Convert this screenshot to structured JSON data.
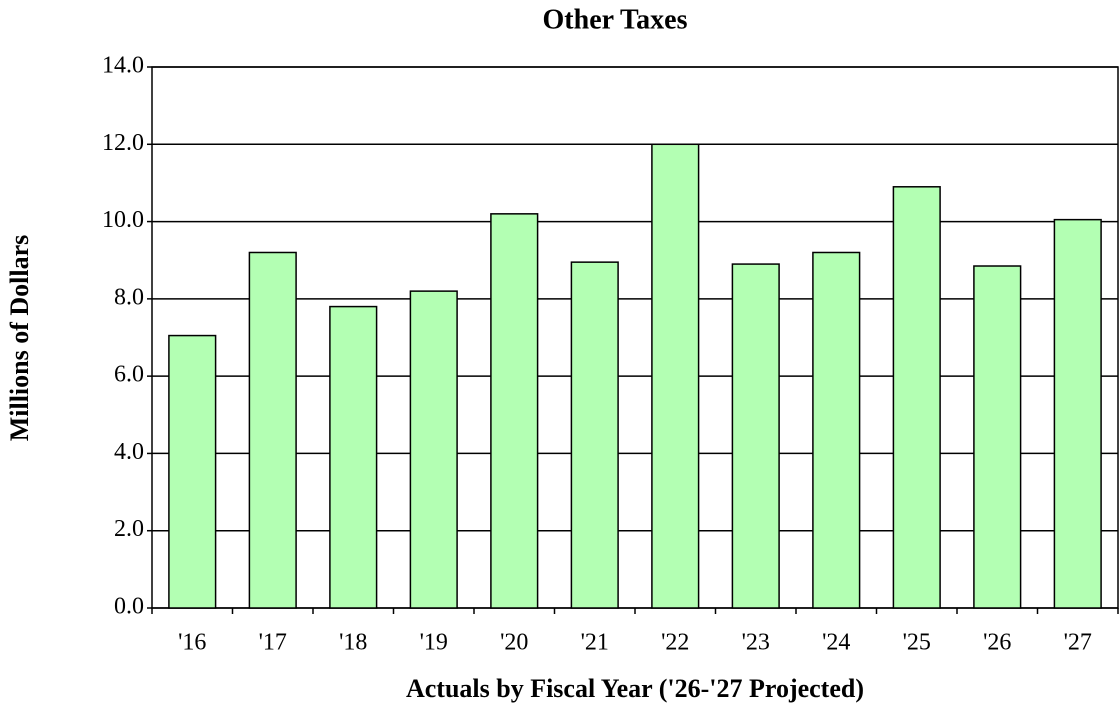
{
  "chart_data": {
    "type": "bar",
    "title": "Other Taxes",
    "x_label": "Actuals by Fiscal Year ('26-'27 Projected)",
    "y_label": "Millions of Dollars",
    "categories": [
      "'16",
      "'17",
      "'18",
      "'19",
      "'20",
      "'21",
      "'22",
      "'23",
      "'24",
      "'25",
      "'26",
      "'27"
    ],
    "values": [
      7.05,
      9.2,
      7.8,
      8.2,
      10.2,
      8.95,
      12.0,
      8.9,
      9.2,
      10.9,
      8.85,
      10.05
    ],
    "color": "#b3ffb3",
    "ylim": [
      0,
      14
    ],
    "yticks": [
      {
        "value": 0,
        "label": "0.0"
      },
      {
        "value": 2,
        "label": "2.0"
      },
      {
        "value": 4,
        "label": "4.0"
      },
      {
        "value": 6,
        "label": "6.0"
      },
      {
        "value": 8,
        "label": "8.0"
      },
      {
        "value": 10,
        "label": "10.0"
      },
      {
        "value": 12,
        "label": "12.0"
      },
      {
        "value": 14,
        "label": "14.0"
      }
    ],
    "grid": true
  }
}
